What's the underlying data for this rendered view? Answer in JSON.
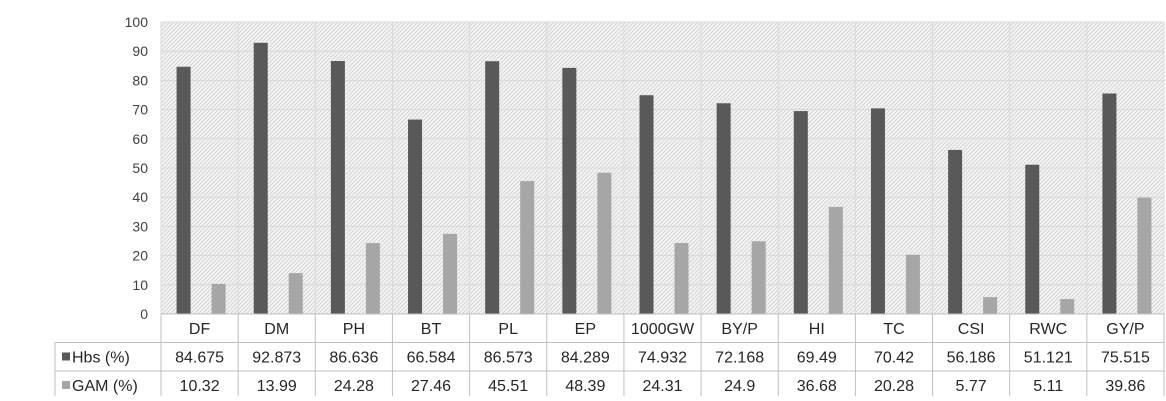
{
  "chart_data": {
    "type": "bar",
    "title": "",
    "xlabel": "",
    "ylabel": "",
    "ylim": [
      0,
      100
    ],
    "yticks": [
      0,
      10,
      20,
      30,
      40,
      50,
      60,
      70,
      80,
      90,
      100
    ],
    "grid": true,
    "legend": "data-table-left",
    "categories": [
      "DF",
      "DM",
      "PH",
      "BT",
      "PL",
      "EP",
      "1000GW",
      "BY/P",
      "HI",
      "TC",
      "CSI",
      "RWC",
      "GY/P"
    ],
    "series": [
      {
        "name": "Hbs (%)",
        "color": "#595959",
        "values": [
          84.675,
          92.873,
          86.636,
          66.584,
          86.573,
          84.289,
          74.932,
          72.168,
          69.49,
          70.42,
          56.186,
          51.121,
          75.515
        ],
        "labels": [
          "84.675",
          "92.873",
          "86.636",
          "66.584",
          "86.573",
          "84.289",
          "74.932",
          "72.168",
          "69.49",
          "70.42",
          "56.186",
          "51.121",
          "75.515"
        ]
      },
      {
        "name": "GAM (%)",
        "color": "#a6a6a6",
        "values": [
          10.32,
          13.99,
          24.28,
          27.46,
          45.51,
          48.39,
          24.31,
          24.9,
          36.68,
          20.28,
          5.77,
          5.11,
          39.86
        ],
        "labels": [
          "10.32",
          "13.99",
          "24.28",
          "27.46",
          "45.51",
          "48.39",
          "24.31",
          "24.9",
          "36.68",
          "20.28",
          "5.77",
          "5.11",
          "39.86"
        ]
      }
    ]
  }
}
